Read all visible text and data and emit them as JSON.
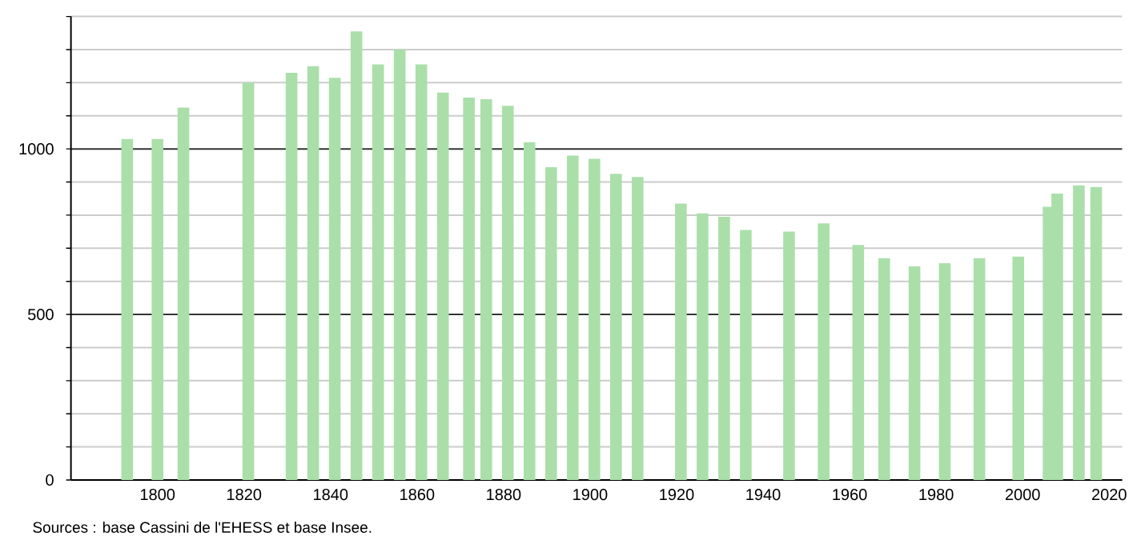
{
  "chart_data": {
    "type": "bar",
    "x": [
      1793,
      1800,
      1806,
      1821,
      1831,
      1836,
      1841,
      1846,
      1851,
      1856,
      1861,
      1866,
      1872,
      1876,
      1881,
      1886,
      1891,
      1896,
      1901,
      1906,
      1911,
      1921,
      1926,
      1931,
      1936,
      1946,
      1954,
      1962,
      1968,
      1975,
      1982,
      1990,
      1999,
      2006,
      2008,
      2013,
      2017
    ],
    "values": [
      1030,
      1030,
      1125,
      1200,
      1230,
      1250,
      1215,
      1355,
      1255,
      1300,
      1255,
      1170,
      1155,
      1150,
      1130,
      1020,
      945,
      980,
      970,
      925,
      915,
      835,
      805,
      795,
      755,
      750,
      775,
      710,
      670,
      645,
      655,
      670,
      675,
      825,
      865,
      890,
      885
    ],
    "color": "#aadfaa",
    "xlim": [
      1780,
      2023
    ],
    "xticks": [
      1800,
      1820,
      1840,
      1860,
      1880,
      1900,
      1920,
      1940,
      1960,
      1980,
      2000,
      2020
    ],
    "ylim": [
      0,
      1400
    ],
    "yticks": [
      0,
      {
        "value": 100,
        "label": null
      },
      {
        "value": 200,
        "label": null
      },
      {
        "value": 300,
        "label": null
      },
      {
        "value": 400,
        "label": null
      },
      500,
      {
        "value": 600,
        "label": null
      },
      {
        "value": 700,
        "label": null
      },
      {
        "value": 800,
        "label": null
      },
      {
        "value": 900,
        "label": null
      },
      1000,
      {
        "value": 1100,
        "label": null
      },
      {
        "value": 1200,
        "label": null
      },
      {
        "value": 1300,
        "label": null
      },
      {
        "value": 1400,
        "label": null
      }
    ],
    "grid": "y",
    "annotations": [
      "Sources : base Cassini de l'EHESS et base Insee."
    ]
  }
}
